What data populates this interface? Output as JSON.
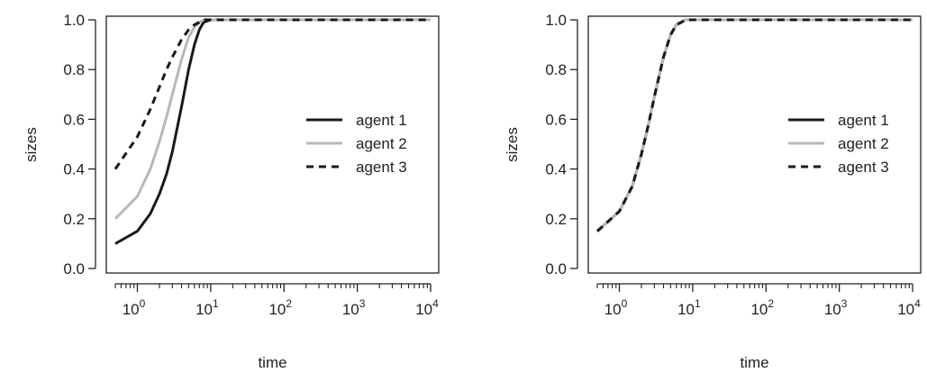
{
  "chart_data": [
    {
      "type": "line",
      "title": "",
      "xlabel": "time",
      "ylabel": "sizes",
      "xscale": "log",
      "xlim": [
        0.5,
        10000
      ],
      "ylim": [
        0,
        1
      ],
      "grid": false,
      "legend_position": "right",
      "x_ticks": [
        {
          "value": 1,
          "base": "10",
          "exp": "0"
        },
        {
          "value": 10,
          "base": "10",
          "exp": "1"
        },
        {
          "value": 100,
          "base": "10",
          "exp": "2"
        },
        {
          "value": 1000,
          "base": "10",
          "exp": "3"
        },
        {
          "value": 10000,
          "base": "10",
          "exp": "4"
        }
      ],
      "y_ticks": [
        "0.0",
        "0.2",
        "0.4",
        "0.6",
        "0.8",
        "1.0"
      ],
      "series": [
        {
          "name": "agent 1",
          "color": "#1a1a1a",
          "dash": "solid",
          "x": [
            0.5,
            1,
            1.5,
            2,
            2.5,
            3,
            4,
            5,
            6,
            7,
            8,
            10,
            20,
            100,
            1000,
            10000
          ],
          "y": [
            0.1,
            0.15,
            0.22,
            0.3,
            0.38,
            0.47,
            0.65,
            0.8,
            0.9,
            0.96,
            0.99,
            1.0,
            1.0,
            1.0,
            1.0,
            1.0
          ]
        },
        {
          "name": "agent 2",
          "color": "#b8b8b8",
          "dash": "solid",
          "x": [
            0.5,
            1,
            1.5,
            2,
            2.5,
            3,
            4,
            5,
            6,
            7,
            8,
            10,
            20,
            100,
            1000,
            10000
          ],
          "y": [
            0.2,
            0.29,
            0.4,
            0.51,
            0.61,
            0.7,
            0.84,
            0.93,
            0.97,
            0.99,
            1.0,
            1.0,
            1.0,
            1.0,
            1.0,
            1.0
          ]
        },
        {
          "name": "agent 3",
          "color": "#1a1a1a",
          "dash": "dashed",
          "x": [
            0.5,
            1,
            1.5,
            2,
            2.5,
            3,
            4,
            5,
            6,
            7,
            8,
            10,
            20,
            100,
            1000,
            10000
          ],
          "y": [
            0.4,
            0.53,
            0.64,
            0.73,
            0.8,
            0.85,
            0.92,
            0.96,
            0.98,
            0.99,
            1.0,
            1.0,
            1.0,
            1.0,
            1.0,
            1.0
          ]
        }
      ]
    },
    {
      "type": "line",
      "title": "",
      "xlabel": "time",
      "ylabel": "sizes",
      "xscale": "log",
      "xlim": [
        0.5,
        10000
      ],
      "ylim": [
        0,
        1
      ],
      "grid": false,
      "legend_position": "right",
      "x_ticks": [
        {
          "value": 1,
          "base": "10",
          "exp": "0"
        },
        {
          "value": 10,
          "base": "10",
          "exp": "1"
        },
        {
          "value": 100,
          "base": "10",
          "exp": "2"
        },
        {
          "value": 1000,
          "base": "10",
          "exp": "3"
        },
        {
          "value": 10000,
          "base": "10",
          "exp": "4"
        }
      ],
      "y_ticks": [
        "0.0",
        "0.2",
        "0.4",
        "0.6",
        "0.8",
        "1.0"
      ],
      "series": [
        {
          "name": "agent 1",
          "color": "#1a1a1a",
          "dash": "solid",
          "x": [
            0.5,
            1,
            1.5,
            2,
            2.5,
            3,
            4,
            5,
            6,
            7,
            8,
            10,
            20,
            100,
            1000,
            10000
          ],
          "y": [
            0.15,
            0.23,
            0.33,
            0.46,
            0.58,
            0.69,
            0.85,
            0.94,
            0.98,
            0.99,
            1.0,
            1.0,
            1.0,
            1.0,
            1.0,
            1.0
          ]
        },
        {
          "name": "agent 2",
          "color": "#b8b8b8",
          "dash": "solid",
          "x": [
            0.5,
            1,
            1.5,
            2,
            2.5,
            3,
            4,
            5,
            6,
            7,
            8,
            10,
            20,
            100,
            1000,
            10000
          ],
          "y": [
            0.15,
            0.23,
            0.33,
            0.46,
            0.58,
            0.69,
            0.85,
            0.94,
            0.98,
            0.99,
            1.0,
            1.0,
            1.0,
            1.0,
            1.0,
            1.0
          ]
        },
        {
          "name": "agent 3",
          "color": "#1a1a1a",
          "dash": "dashed",
          "x": [
            0.5,
            1,
            1.5,
            2,
            2.5,
            3,
            4,
            5,
            6,
            7,
            8,
            10,
            20,
            100,
            1000,
            10000
          ],
          "y": [
            0.15,
            0.23,
            0.33,
            0.46,
            0.58,
            0.69,
            0.85,
            0.94,
            0.98,
            0.99,
            1.0,
            1.0,
            1.0,
            1.0,
            1.0,
            1.0
          ]
        }
      ]
    }
  ]
}
